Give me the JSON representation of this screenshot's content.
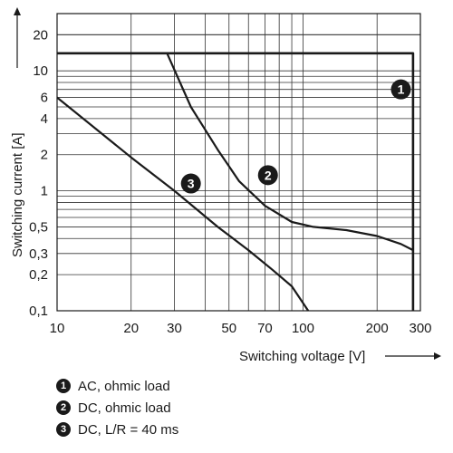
{
  "chart_data": {
    "type": "line",
    "xlabel": "Switching voltage [V]",
    "ylabel": "Switching current [A]",
    "xscale": "log",
    "yscale": "log",
    "xlim": [
      10,
      300
    ],
    "ylim": [
      0.1,
      30
    ],
    "grid": true,
    "x_tick_labels": [
      "10",
      "20",
      "30",
      "50",
      "70",
      "100",
      "200",
      "300"
    ],
    "x_ticks": [
      10,
      20,
      30,
      50,
      70,
      100,
      200,
      300
    ],
    "y_tick_labels": [
      "0,1",
      "0,2",
      "0,3",
      "0,5",
      "1",
      "2",
      "4",
      "6",
      "10",
      "20"
    ],
    "y_ticks": [
      0.1,
      0.2,
      0.3,
      0.5,
      1,
      2,
      4,
      6,
      10,
      20
    ],
    "series": [
      {
        "marker": "1",
        "x": [
          10,
          280,
          280
        ],
        "y": [
          14,
          14,
          0.1
        ]
      },
      {
        "marker": "2",
        "x": [
          28,
          35,
          45,
          55,
          70,
          90,
          110,
          150,
          200,
          250,
          280
        ],
        "y": [
          14,
          5,
          2.2,
          1.2,
          0.75,
          0.55,
          0.5,
          0.47,
          0.42,
          0.36,
          0.32
        ]
      },
      {
        "marker": "3",
        "x": [
          10,
          20,
          30,
          45,
          60,
          75,
          90,
          105
        ],
        "y": [
          6,
          1.9,
          1.0,
          0.5,
          0.32,
          0.22,
          0.16,
          0.1
        ]
      }
    ],
    "curve_markers": [
      {
        "label": "1",
        "x": 250,
        "y": 7
      },
      {
        "label": "2",
        "x": 72,
        "y": 1.35
      },
      {
        "label": "3",
        "x": 35,
        "y": 1.15
      }
    ]
  },
  "legend": [
    {
      "marker": "1",
      "text": "AC, ohmic load"
    },
    {
      "marker": "2",
      "text": "DC, ohmic load"
    },
    {
      "marker": "3",
      "text": "DC, L/R = 40 ms"
    }
  ]
}
